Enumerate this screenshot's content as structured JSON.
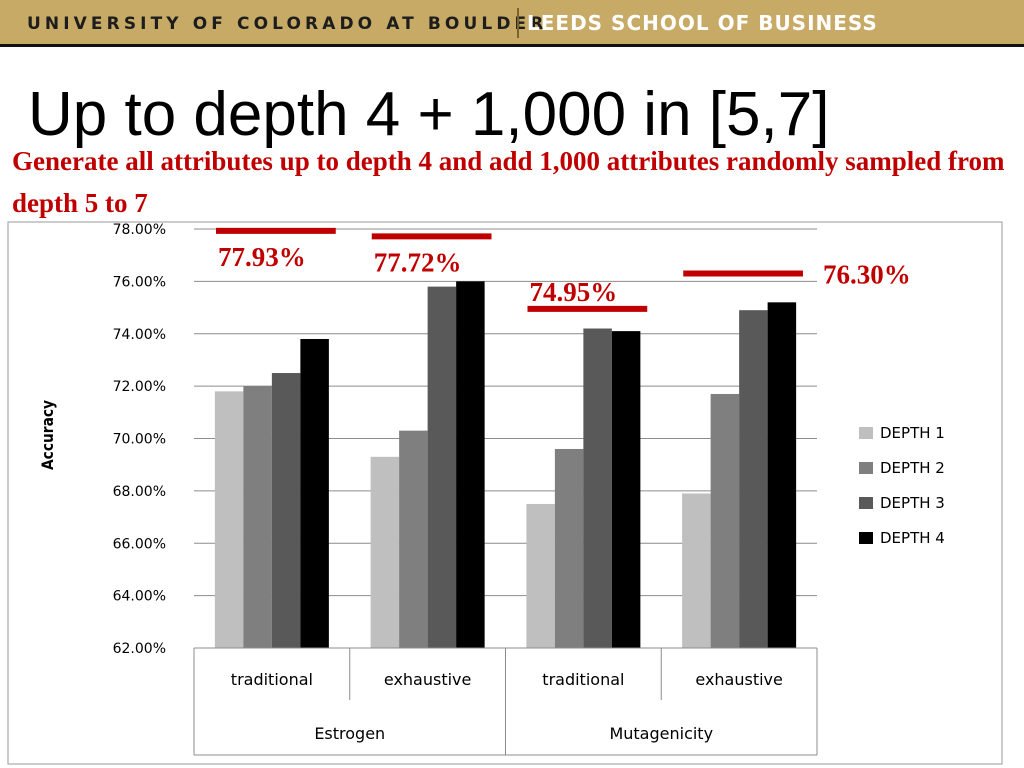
{
  "header": {
    "university": "UNIVERSITY OF COLORADO AT BOULDER",
    "school": "LEEDS SCHOOL OF BUSINESS"
  },
  "slide": {
    "title": "Up to depth 4 + 1,000 in [5,7]",
    "subtitle": "Generate all attributes up to depth 4 and add 1,000 attributes randomly sampled from depth 5 to 7"
  },
  "colors": {
    "banner": "#c6aa66",
    "annotation": "#c00000",
    "depth1": "#bfbfbf",
    "depth2": "#7f7f7f",
    "depth3": "#595959",
    "depth4": "#000000"
  },
  "chart_data": {
    "type": "bar",
    "ylabel": "Accuracy",
    "ylim": [
      0.62,
      0.78
    ],
    "ytick_labels": [
      "78.00%",
      "76.00%",
      "74.00%",
      "72.00%",
      "70.00%",
      "68.00%",
      "66.00%",
      "64.00%",
      "62.00%"
    ],
    "grid": true,
    "legend_position": "right",
    "groups": [
      "Estrogen",
      "Mutagenicity"
    ],
    "categories": [
      "traditional",
      "exhaustive",
      "traditional",
      "exhaustive"
    ],
    "series": [
      {
        "name": "DEPTH 1",
        "color": "#bfbfbf",
        "values": [
          0.718,
          0.693,
          0.675,
          0.679
        ]
      },
      {
        "name": "DEPTH 2",
        "color": "#7f7f7f",
        "values": [
          0.72,
          0.703,
          0.696,
          0.717
        ]
      },
      {
        "name": "DEPTH 3",
        "color": "#595959",
        "values": [
          0.725,
          0.758,
          0.742,
          0.749
        ]
      },
      {
        "name": "DEPTH 4",
        "color": "#000000",
        "values": [
          0.738,
          0.76,
          0.741,
          0.752
        ]
      }
    ],
    "annotations": [
      {
        "label": "77.93%",
        "value": 0.7793,
        "category_index": 0
      },
      {
        "label": "77.72%",
        "value": 0.7772,
        "category_index": 1
      },
      {
        "label": "74.95%",
        "value": 0.7495,
        "category_index": 2
      },
      {
        "label": "76.30%",
        "value": 0.763,
        "category_index": 3
      }
    ]
  }
}
